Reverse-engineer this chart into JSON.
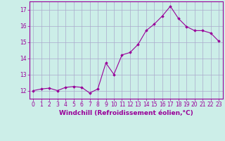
{
  "x": [
    0,
    1,
    2,
    3,
    4,
    5,
    6,
    7,
    8,
    9,
    10,
    11,
    12,
    13,
    14,
    15,
    16,
    17,
    18,
    19,
    20,
    21,
    22,
    23
  ],
  "y": [
    12.0,
    12.1,
    12.15,
    12.0,
    12.2,
    12.25,
    12.2,
    11.85,
    12.1,
    13.7,
    13.0,
    14.2,
    14.35,
    14.85,
    15.7,
    16.1,
    16.6,
    17.2,
    16.45,
    15.95,
    15.7,
    15.7,
    15.55,
    15.05
  ],
  "line_color": "#990099",
  "marker": "D",
  "marker_size": 1.8,
  "bg_color": "#cceee8",
  "grid_color": "#aaaacc",
  "xlabel": "Windchill (Refroidissement éolien,°C)",
  "xlabel_fontsize": 6.5,
  "xlim": [
    -0.5,
    23.5
  ],
  "ylim": [
    11.5,
    17.5
  ],
  "yticks": [
    12,
    13,
    14,
    15,
    16,
    17
  ],
  "xticks": [
    0,
    1,
    2,
    3,
    4,
    5,
    6,
    7,
    8,
    9,
    10,
    11,
    12,
    13,
    14,
    15,
    16,
    17,
    18,
    19,
    20,
    21,
    22,
    23
  ],
  "tick_fontsize": 5.5,
  "spine_color": "#990099",
  "label_color": "#990099"
}
